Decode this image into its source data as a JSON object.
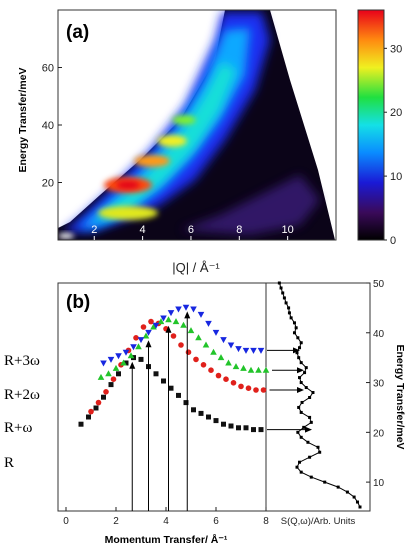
{
  "chart_data": [
    {
      "type": "heatmap",
      "panel_label": "(a)",
      "xlabel": "|Q| / Å⁻¹",
      "ylabel": "Energy Transfer/meV",
      "xlim": [
        0.5,
        12.0
      ],
      "ylim": [
        0,
        80
      ],
      "xticks": [
        2,
        4,
        6,
        8,
        10
      ],
      "yticks": [
        20,
        40,
        60
      ],
      "colorbar": {
        "range": [
          0,
          36
        ],
        "ticks": [
          0,
          10,
          20,
          30
        ]
      },
      "peaks": [
        {
          "q": 3.3,
          "e": 9,
          "intensity": 18
        },
        {
          "q": 3.3,
          "e": 19,
          "intensity": 31
        },
        {
          "q": 4.0,
          "e": 27,
          "intensity": 22
        },
        {
          "q": 4.8,
          "e": 34,
          "intensity": 20
        },
        {
          "q": 5.2,
          "e": 41,
          "intensity": 16
        },
        {
          "q": 0.7,
          "e": 2,
          "intensity": 36
        }
      ]
    },
    {
      "type": "scatter",
      "panel_label": "(b)",
      "xlabel": "Momentum Transfer/ Å⁻¹",
      "xticks": [
        0,
        2,
        4,
        6,
        8
      ],
      "xlim": [
        0,
        8
      ],
      "right_ylabel": "Energy Transfer/meV",
      "right_yticks": [
        10,
        20,
        30,
        40,
        50
      ],
      "right_ylim": [
        5,
        50
      ],
      "right_xlabel": "S(Q,ω)/Arb. Units",
      "series": [
        {
          "name": "R",
          "color": "#111111",
          "marker": "square",
          "x": [
            0.6,
            0.9,
            1.2,
            1.5,
            1.8,
            2.1,
            2.4,
            2.7,
            3.0,
            3.3,
            3.6,
            3.9,
            4.2,
            4.5,
            4.8,
            5.1,
            5.4,
            5.7,
            6.0,
            6.3,
            6.6,
            6.9,
            7.2,
            7.5,
            7.8
          ],
          "y": [
            0.36,
            0.4,
            0.45,
            0.51,
            0.58,
            0.64,
            0.7,
            0.73,
            0.72,
            0.68,
            0.64,
            0.6,
            0.56,
            0.52,
            0.48,
            0.44,
            0.42,
            0.4,
            0.38,
            0.36,
            0.35,
            0.34,
            0.34,
            0.33,
            0.33
          ]
        },
        {
          "name": "R+ω",
          "color": "#e0201b",
          "marker": "circle",
          "x": [
            1.0,
            1.3,
            1.6,
            1.9,
            2.2,
            2.5,
            2.8,
            3.1,
            3.4,
            3.7,
            4.0,
            4.3,
            4.6,
            4.9,
            5.2,
            5.5,
            5.8,
            6.1,
            6.4,
            6.7,
            7.0,
            7.3,
            7.6,
            7.9
          ],
          "y": [
            0.43,
            0.48,
            0.54,
            0.61,
            0.69,
            0.77,
            0.84,
            0.9,
            0.93,
            0.92,
            0.89,
            0.85,
            0.8,
            0.76,
            0.72,
            0.69,
            0.66,
            0.63,
            0.61,
            0.59,
            0.57,
            0.56,
            0.55,
            0.55
          ]
        },
        {
          "name": "R+2ω",
          "color": "#22c42a",
          "marker": "triangle-up",
          "x": [
            1.4,
            1.7,
            2.0,
            2.3,
            2.6,
            2.9,
            3.2,
            3.5,
            3.8,
            4.1,
            4.4,
            4.7,
            5.0,
            5.3,
            5.6,
            5.9,
            6.2,
            6.5,
            6.8,
            7.1,
            7.4,
            7.7,
            8.0
          ],
          "y": [
            0.62,
            0.64,
            0.67,
            0.7,
            0.74,
            0.79,
            0.85,
            0.9,
            0.93,
            0.94,
            0.93,
            0.91,
            0.88,
            0.84,
            0.8,
            0.76,
            0.73,
            0.7,
            0.68,
            0.67,
            0.66,
            0.66,
            0.66
          ]
        },
        {
          "name": "R+3ω",
          "color": "#1727e0",
          "marker": "triangle-down",
          "x": [
            1.5,
            1.8,
            2.1,
            2.4,
            2.7,
            3.0,
            3.3,
            3.6,
            3.9,
            4.2,
            4.5,
            4.8,
            5.1,
            5.4,
            5.7,
            6.0,
            6.3,
            6.6,
            6.9,
            7.2,
            7.5,
            7.8
          ],
          "y": [
            0.7,
            0.72,
            0.74,
            0.76,
            0.79,
            0.83,
            0.87,
            0.91,
            0.95,
            0.98,
            1.0,
            1.01,
            1.0,
            0.97,
            0.92,
            0.87,
            0.83,
            0.8,
            0.78,
            0.77,
            0.77,
            0.77
          ]
        }
      ],
      "peak_arrows_q": [
        2.65,
        3.3,
        4.1,
        4.85
      ],
      "spectrum": {
        "energy": [
          5,
          6,
          7,
          8,
          9,
          10,
          11,
          12,
          13,
          14,
          15,
          16,
          17,
          18,
          19,
          20,
          21,
          22,
          23,
          24,
          25,
          26,
          27,
          28,
          29,
          30,
          31,
          32,
          33,
          34,
          35,
          36,
          37,
          38,
          39,
          40,
          41,
          42,
          43,
          44,
          45,
          46,
          47,
          48,
          49,
          50
        ],
        "intensity": [
          1.0,
          0.97,
          0.93,
          0.85,
          0.74,
          0.58,
          0.42,
          0.3,
          0.25,
          0.28,
          0.4,
          0.52,
          0.5,
          0.38,
          0.3,
          0.26,
          0.33,
          0.42,
          0.4,
          0.3,
          0.27,
          0.31,
          0.4,
          0.44,
          0.36,
          0.3,
          0.28,
          0.34,
          0.36,
          0.3,
          0.27,
          0.25,
          0.28,
          0.3,
          0.26,
          0.22,
          0.24,
          0.22,
          0.18,
          0.16,
          0.15,
          0.12,
          0.1,
          0.08,
          0.06,
          0.04
        ]
      },
      "row_labels": [
        "R+3ω",
        "R+2ω",
        "R+ω",
        "R"
      ]
    }
  ]
}
